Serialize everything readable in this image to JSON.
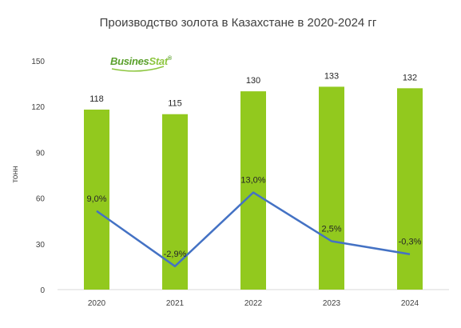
{
  "chart_data": {
    "type": "bar",
    "title": "Производство золота в Казахстане в 2020-2024 гг",
    "ylabel": "тонн",
    "xlabel": "",
    "ylim": [
      0,
      150
    ],
    "yticks": [
      0,
      30,
      60,
      90,
      120,
      150
    ],
    "categories": [
      "2020",
      "2021",
      "2022",
      "2023",
      "2024"
    ],
    "series": [
      {
        "type": "bar",
        "values": [
          118,
          115,
          130,
          133,
          132
        ],
        "labels": [
          "118",
          "115",
          "130",
          "133",
          "132"
        ],
        "color": "#92c91e"
      },
      {
        "type": "line",
        "values": [
          9.0,
          -2.9,
          13.0,
          2.5,
          -0.3
        ],
        "labels": [
          "9,0%",
          "-2,9%",
          "13,0%",
          "2,5%",
          "-0,3%"
        ],
        "color": "#4472c4"
      }
    ],
    "grid": false,
    "legend": "none"
  },
  "logo": {
    "text_part1": "Busines",
    "text_part2": "Stat",
    "registered": "®",
    "color_dark": "#6aa84f",
    "color_light": "#8dc63f"
  }
}
